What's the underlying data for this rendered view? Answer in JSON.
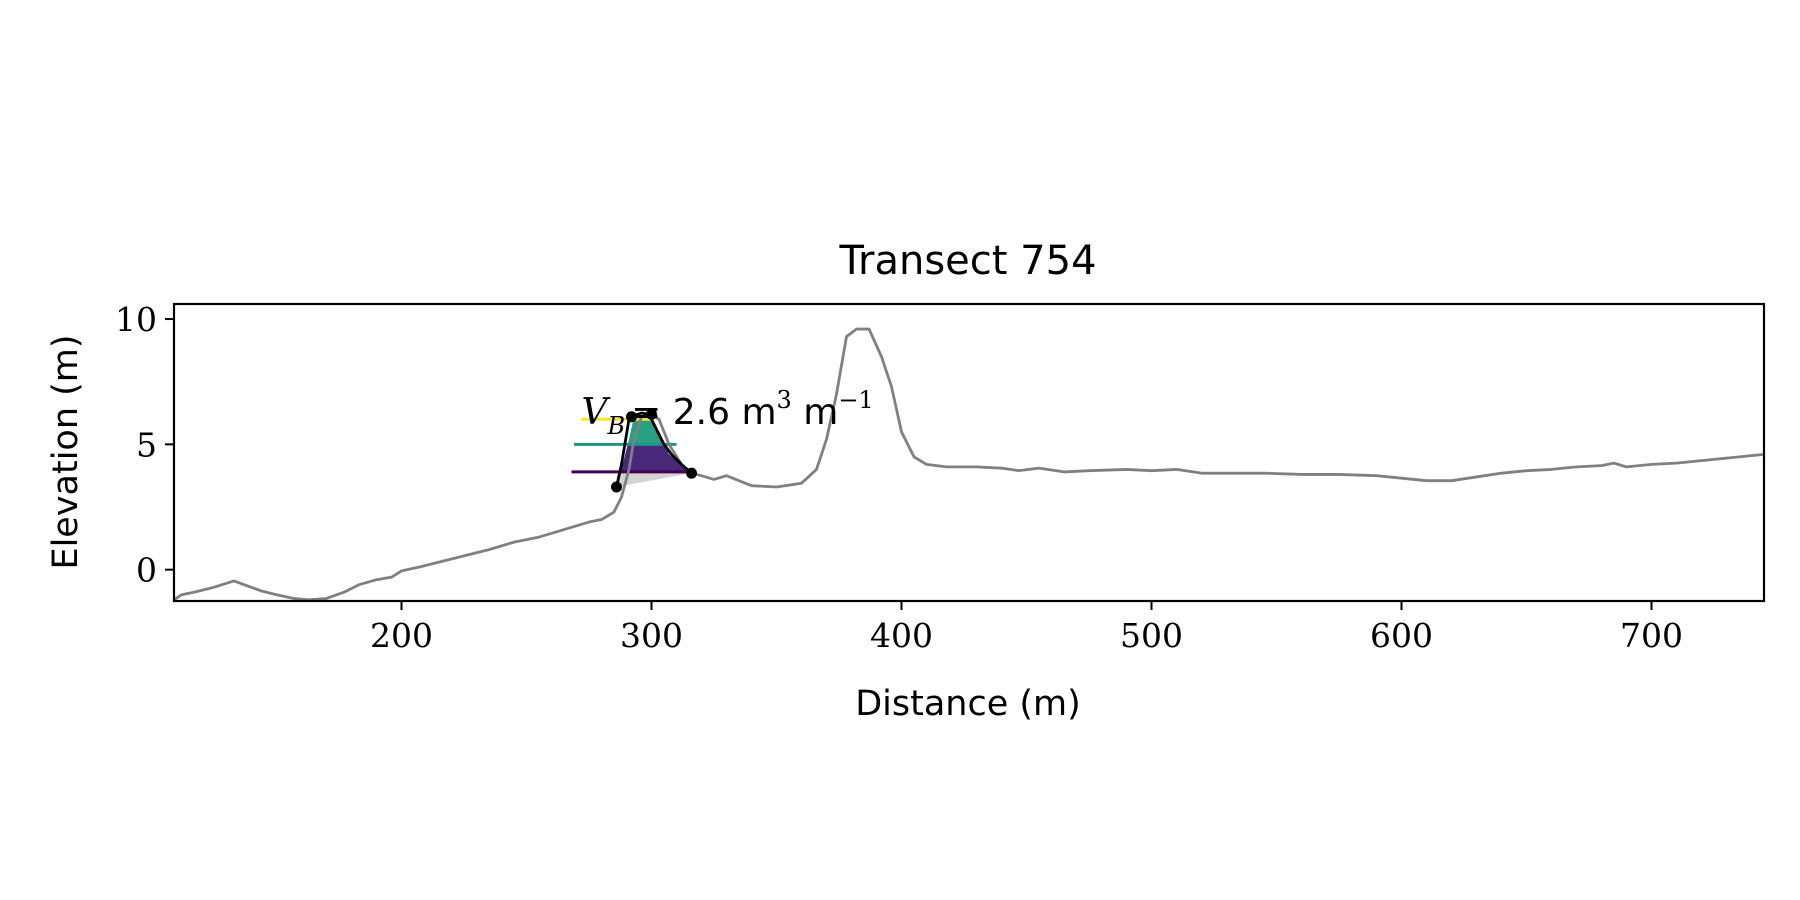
{
  "chart_data": {
    "type": "line",
    "title": "Transect 754",
    "xlabel": "Distance (m)",
    "ylabel": "Elevation (m)",
    "xlim": [
      109,
      745
    ],
    "ylim": [
      -1.25,
      10.6
    ],
    "xticks": [
      200,
      300,
      400,
      500,
      600,
      700
    ],
    "yticks": [
      0,
      5,
      10
    ],
    "grid": false,
    "annotation": {
      "main": "V",
      "subscript": "B",
      "equals": "= 2.6 m",
      "exp1": "3",
      "unit2": " m",
      "exp2": "−1",
      "x": 272,
      "y": 6.3
    },
    "profile": {
      "color": "#808080",
      "x": [
        109,
        112,
        117,
        125,
        133,
        137,
        144,
        150,
        157,
        163,
        170,
        177,
        183,
        190,
        196,
        200,
        207,
        215,
        225,
        235,
        245,
        255,
        265,
        275,
        280,
        285,
        288,
        291,
        293,
        296,
        299,
        303,
        307,
        312,
        316,
        320,
        325,
        330,
        340,
        350,
        360,
        366,
        370,
        374,
        378,
        382,
        387,
        392,
        396,
        400,
        405,
        410,
        418,
        430,
        440,
        447,
        455,
        465,
        475,
        490,
        500,
        510,
        520,
        530,
        545,
        560,
        575,
        590,
        600,
        610,
        620,
        630,
        640,
        650,
        660,
        670,
        680,
        685,
        690,
        700,
        710,
        720,
        730,
        740,
        745
      ],
      "y": [
        -1.2,
        -1.0,
        -0.9,
        -0.7,
        -0.45,
        -0.6,
        -0.85,
        -1.0,
        -1.15,
        -1.2,
        -1.15,
        -0.9,
        -0.6,
        -0.4,
        -0.3,
        -0.05,
        0.1,
        0.3,
        0.55,
        0.8,
        1.1,
        1.3,
        1.6,
        1.9,
        2.0,
        2.3,
        2.9,
        4.0,
        5.2,
        6.1,
        6.2,
        6.0,
        5.0,
        4.2,
        3.85,
        3.75,
        3.6,
        3.75,
        3.35,
        3.3,
        3.45,
        4.0,
        5.2,
        7.0,
        9.3,
        9.6,
        9.6,
        8.5,
        7.3,
        5.5,
        4.5,
        4.2,
        4.1,
        4.1,
        4.05,
        3.95,
        4.05,
        3.9,
        3.95,
        4.0,
        3.95,
        4.0,
        3.85,
        3.85,
        3.85,
        3.8,
        3.8,
        3.75,
        3.65,
        3.55,
        3.55,
        3.7,
        3.85,
        3.95,
        4.0,
        4.1,
        4.15,
        4.25,
        4.1,
        4.2,
        4.25,
        4.35,
        4.45,
        4.55,
        4.6
      ]
    },
    "berm_fill": {
      "x": [
        286,
        316,
        313,
        307,
        304,
        300,
        298,
        293,
        291,
        288
      ],
      "y": [
        3.3,
        3.85,
        4.1,
        4.6,
        5.2,
        6.0,
        6.2,
        6.1,
        5.2,
        4.0
      ],
      "color": "#d3d3d3"
    },
    "bands": [
      {
        "y0": 3.9,
        "y1": 5.0,
        "color": "#482878"
      },
      {
        "y0": 5.0,
        "y1": 6.0,
        "color": "#26a184"
      },
      {
        "y0": 6.0,
        "y1": 6.25,
        "color": "#fde725"
      }
    ],
    "levels": [
      {
        "y": 3.9,
        "x0": 268,
        "x1": 316,
        "color": "#440154"
      },
      {
        "y": 5.0,
        "x0": 269,
        "x1": 310,
        "color": "#21918c"
      },
      {
        "y": 6.0,
        "x0": 272,
        "x1": 300,
        "color": "#fde725"
      }
    ],
    "outline": {
      "x": [
        286,
        288,
        290,
        291,
        293,
        296,
        299,
        302,
        305,
        308,
        312,
        316
      ],
      "y": [
        3.3,
        4.2,
        5.4,
        6.0,
        6.15,
        6.25,
        6.2,
        5.6,
        5.0,
        4.6,
        4.2,
        3.85
      ],
      "color": "#000000"
    },
    "markers": [
      {
        "x": 286,
        "y": 3.3
      },
      {
        "x": 292,
        "y": 6.1
      },
      {
        "x": 300,
        "y": 6.2
      },
      {
        "x": 316,
        "y": 3.85
      }
    ]
  }
}
